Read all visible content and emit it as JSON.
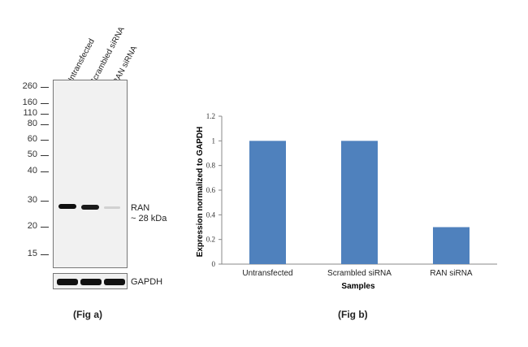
{
  "blot": {
    "lanes": [
      "Untransfected",
      "Scrambled siRNA",
      "RAN siRNA"
    ],
    "markers": [
      "260",
      "160",
      "110",
      "80",
      "60",
      "50",
      "40",
      "30",
      "20",
      "15"
    ],
    "band_label_line1": "RAN",
    "band_label_line2": "~ 28 kDa",
    "band_intensities": [
      1,
      0.95,
      0.12
    ],
    "loading_label": "GAPDH",
    "caption": "(Fig a)"
  },
  "chart_data": {
    "type": "bar",
    "categories": [
      "Untransfected",
      "Scrambled siRNA",
      "RAN siRNA"
    ],
    "values": [
      1.0,
      1.0,
      0.3
    ],
    "title": "",
    "xlabel": "Samples",
    "ylabel": "Expression  normalized to GAPDH",
    "ylim": [
      0,
      1.2
    ],
    "yticks": [
      "0",
      "0.2",
      "0.4",
      "0.6",
      "0.8",
      "1",
      "1.2"
    ],
    "grid": false,
    "bar_color": "#4f81bd",
    "caption": "(Fig b)"
  }
}
